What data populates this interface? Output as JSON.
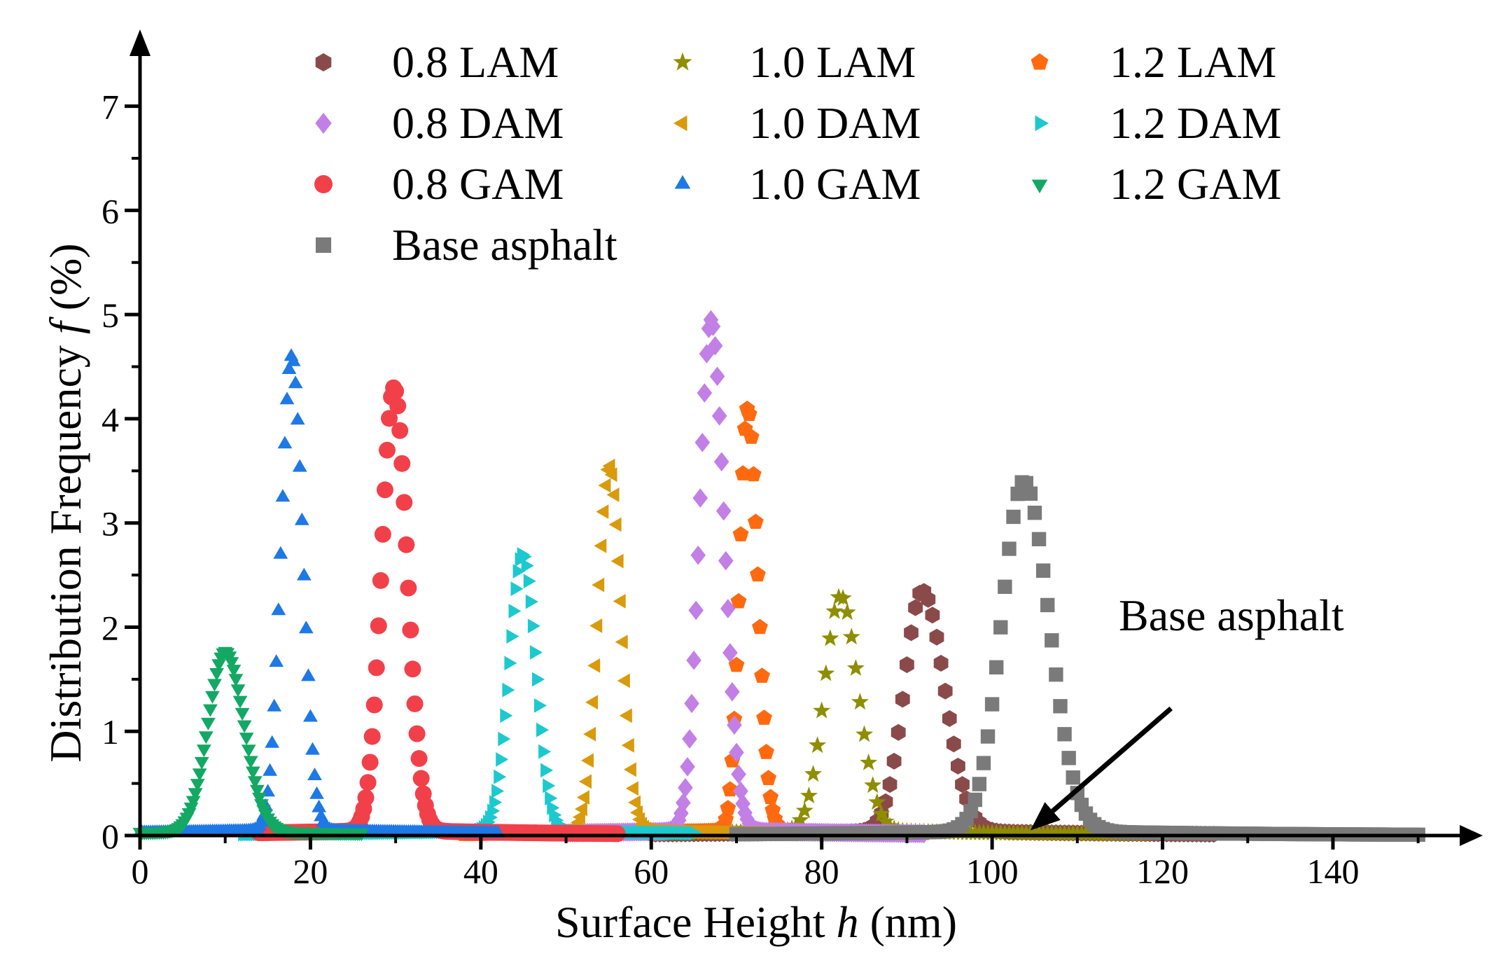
{
  "chart_data": {
    "type": "scatter",
    "title": "",
    "xlabel": "Surface Height h (nm)",
    "xlabel_parts": [
      "Surface Height ",
      "h",
      " (nm)"
    ],
    "ylabel": "Distribution Frequency f (%)",
    "ylabel_parts": [
      "Distribution Frequency ",
      "f",
      " (%)"
    ],
    "xlim": [
      0,
      152
    ],
    "ylim": [
      0,
      7.3
    ],
    "xticks": [
      0,
      20,
      40,
      60,
      80,
      100,
      120,
      140
    ],
    "yticks": [
      0,
      1,
      2,
      3,
      4,
      5,
      6,
      7
    ],
    "grid": false,
    "legend_position": "top",
    "series": [
      {
        "name": "0.8 LAM",
        "marker": "hexagon",
        "color": "#8B4A4A",
        "peak_x": 91.8,
        "peak_y": 2.3,
        "sigma_left": 2.1,
        "sigma_right": 2.6,
        "x_range": [
          60,
          126
        ],
        "step": 0.5
      },
      {
        "name": "1.0 LAM",
        "marker": "star",
        "color": "#8E8E00",
        "peak_x": 82.2,
        "peak_y": 2.25,
        "sigma_left": 1.9,
        "sigma_right": 2.1,
        "x_range": [
          58,
          118
        ],
        "step": 0.5
      },
      {
        "name": "1.2 LAM",
        "marker": "pentagon",
        "color": "#FF6A10",
        "peak_x": 71.3,
        "peak_y": 4.05,
        "sigma_left": 0.95,
        "sigma_right": 1.2,
        "x_range": [
          38,
          92
        ],
        "step": 0.25
      },
      {
        "name": "0.8 DAM",
        "marker": "diamond",
        "color": "#C27FE6",
        "peak_x": 67.0,
        "peak_y": 4.9,
        "sigma_left": 1.35,
        "sigma_right": 1.55,
        "x_range": [
          50,
          92
        ],
        "step": 0.25
      },
      {
        "name": "1.0 DAM",
        "marker": "triangle-left",
        "color": "#D99A0C",
        "peak_x": 55.2,
        "peak_y": 3.5,
        "sigma_left": 1.35,
        "sigma_right": 1.35,
        "x_range": [
          38,
          78
        ],
        "step": 0.25
      },
      {
        "name": "1.2 DAM",
        "marker": "triangle-right",
        "color": "#1CC9CF",
        "peak_x": 44.8,
        "peak_y": 2.65,
        "sigma_left": 1.55,
        "sigma_right": 1.55,
        "x_range": [
          12,
          65
        ],
        "step": 0.25
      },
      {
        "name": "0.8 GAM",
        "marker": "circle",
        "color": "#F2404A",
        "peak_x": 29.8,
        "peak_y": 4.25,
        "sigma_left": 1.45,
        "sigma_right": 1.55,
        "x_range": [
          14,
          56
        ],
        "step": 0.25
      },
      {
        "name": "1.0 GAM",
        "marker": "triangle-up",
        "color": "#1E78E6",
        "peak_x": 17.8,
        "peak_y": 4.55,
        "sigma_left": 1.25,
        "sigma_right": 1.3,
        "x_range": [
          0,
          42
        ],
        "step": 0.25
      },
      {
        "name": "1.2 GAM",
        "marker": "triangle-down",
        "color": "#13A864",
        "peak_x": 10.0,
        "peak_y": 1.72,
        "sigma_left": 2.0,
        "sigma_right": 2.2,
        "x_range": [
          0,
          26
        ],
        "step": 0.25
      },
      {
        "name": "Base asphalt",
        "marker": "square",
        "color": "#7A7A7A",
        "peak_x": 103.7,
        "peak_y": 3.35,
        "sigma_left": 2.6,
        "sigma_right": 3.0,
        "x_range": [
          70,
          150
        ],
        "step": 0.5
      }
    ],
    "annotations": [
      {
        "text": "Base asphalt",
        "arrow_to": [
          104.5,
          0.05
        ],
        "arrow_from": [
          121,
          1.22
        ]
      }
    ]
  }
}
